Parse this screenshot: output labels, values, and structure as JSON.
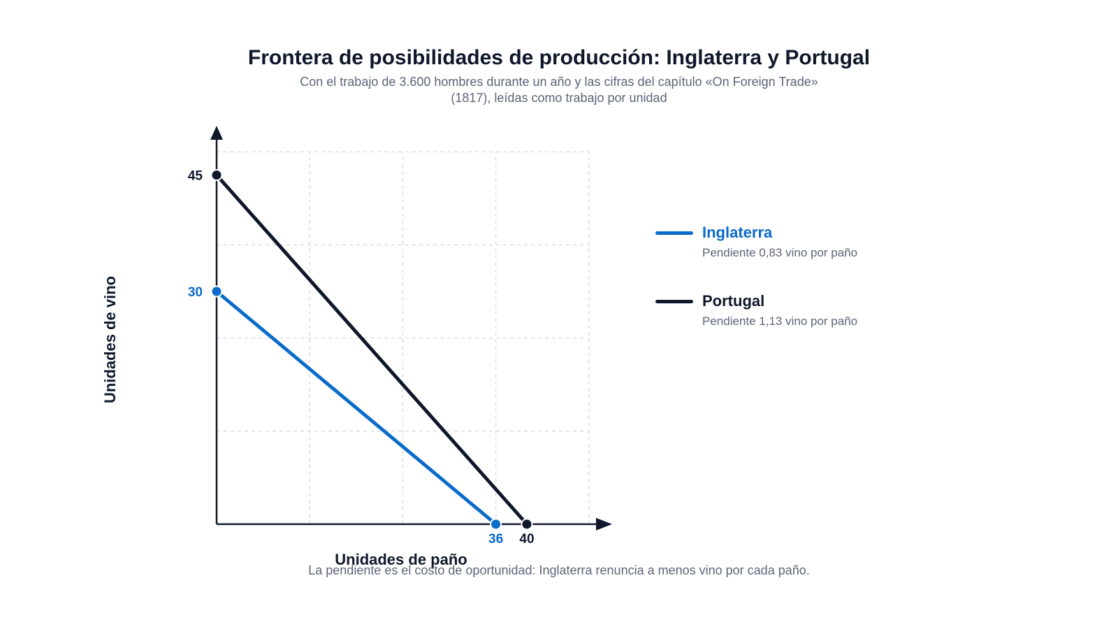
{
  "title": "Frontera de posibilidades de producción: Inglaterra y Portugal",
  "subtitle_lines": [
    "Con el trabajo de 3.600 hombres durante un año y las cifras del capítulo «On Foreign Trade»",
    "(1817), leídas como trabajo por unidad"
  ],
  "footnote": "La pendiente es el costo de oportunidad: Inglaterra renuncia a menos vino por cada paño.",
  "chart_data": {
    "type": "line",
    "xlabel": "Unidades de paño",
    "ylabel": "Unidades de vino",
    "xlim": [
      0,
      48
    ],
    "ylim": [
      0,
      48
    ],
    "grid": true,
    "legend_position": "right",
    "series": [
      {
        "name": "Inglaterra",
        "color": "#0b6bcb",
        "note": "Pendiente 0,83 vino por paño",
        "points": [
          [
            0,
            30
          ],
          [
            36,
            0
          ]
        ],
        "intercept_labels": {
          "x": "36",
          "y": "30"
        }
      },
      {
        "name": "Portugal",
        "color": "#0f172a",
        "note": "Pendiente 1,13 vino por paño",
        "points": [
          [
            0,
            45
          ],
          [
            40,
            0
          ]
        ],
        "intercept_labels": {
          "x": "40",
          "y": "45"
        }
      }
    ]
  }
}
